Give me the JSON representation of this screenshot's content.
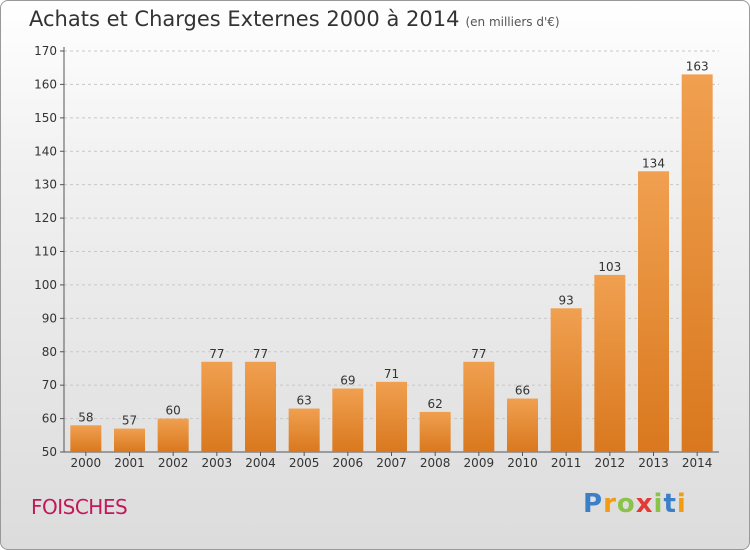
{
  "header": {
    "title": "Achats et Charges Externes 2000 à 2014",
    "subtitle": "(en milliers d'€)"
  },
  "footer": {
    "place": "FOISCHES",
    "logo_letters": [
      "P",
      "r",
      "o",
      "x",
      "i",
      "t",
      "i"
    ],
    "logo_colors": [
      "#3a7fc8",
      "#f39c12",
      "#8bc34a",
      "#e53935",
      "#8bc34a",
      "#3a7fc8",
      "#f39c12"
    ]
  },
  "chart_data": {
    "type": "bar",
    "title": "Achats et Charges Externes 2000 à 2014",
    "categories": [
      "2000",
      "2001",
      "2002",
      "2003",
      "2004",
      "2005",
      "2006",
      "2007",
      "2008",
      "2009",
      "2010",
      "2011",
      "2012",
      "2013",
      "2014"
    ],
    "values": [
      58,
      57,
      60,
      77,
      77,
      63,
      69,
      71,
      62,
      77,
      66,
      93,
      103,
      134,
      163
    ],
    "ylim": [
      50,
      170
    ],
    "yticks": [
      50,
      60,
      70,
      80,
      90,
      100,
      110,
      120,
      130,
      140,
      150,
      160,
      170
    ],
    "grid": true,
    "bar_color": "#f0a050",
    "bar_color_dark": "#d9781e"
  }
}
